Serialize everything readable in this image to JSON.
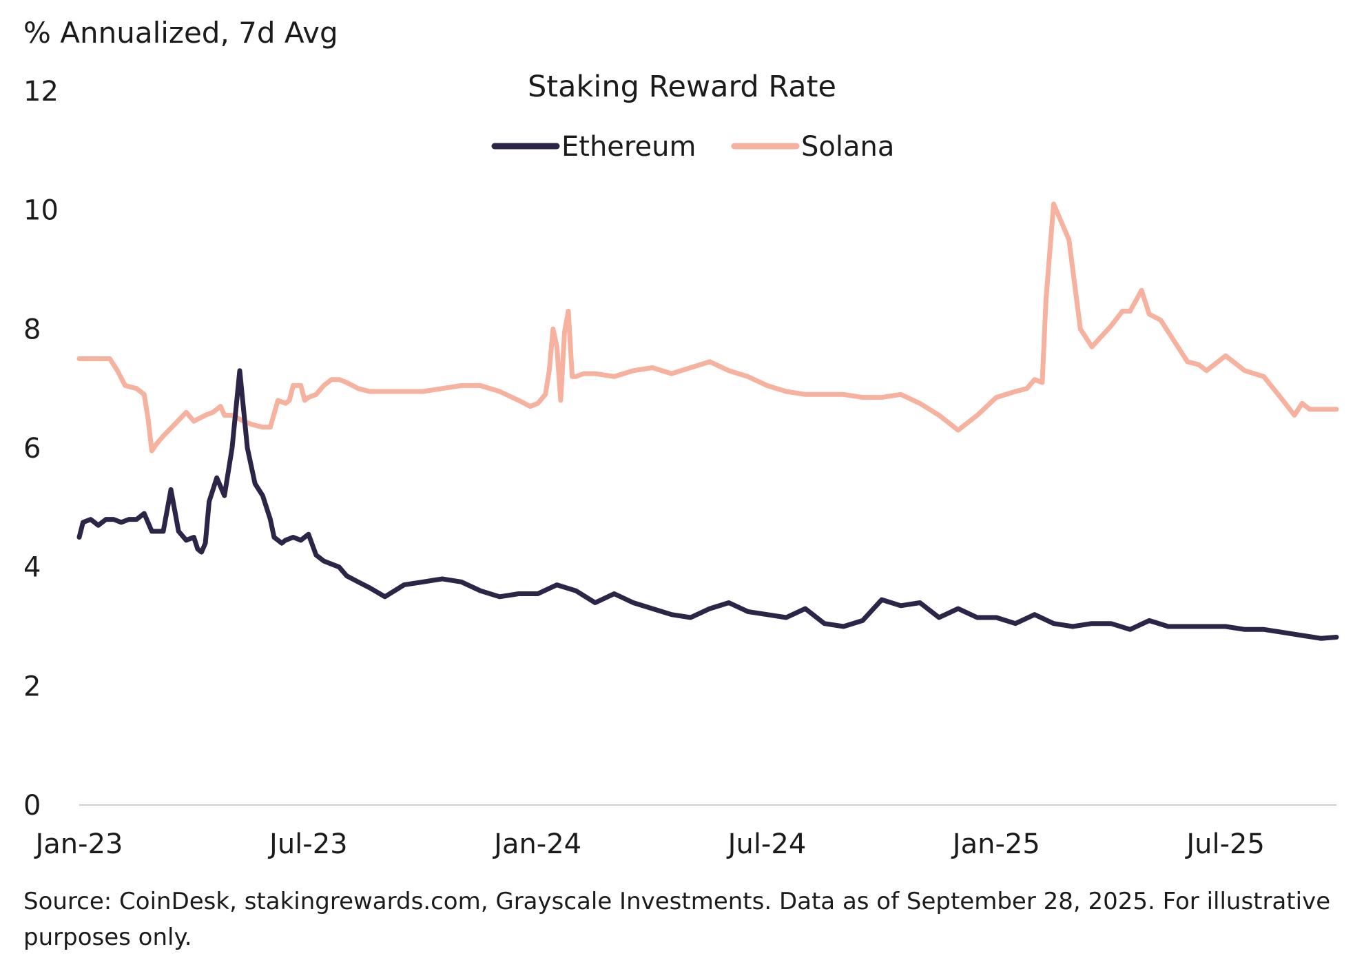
{
  "chart_data": {
    "type": "line",
    "title": "Staking Reward Rate",
    "ylabel": "% Annualized, 7d Avg",
    "xlabel": "",
    "ylim": [
      0,
      12
    ],
    "yticks": [
      0,
      2,
      4,
      6,
      8,
      10,
      12
    ],
    "x_tick_labels": [
      "Jan-23",
      "Jul-23",
      "Jan-24",
      "Jul-24",
      "Jan-25",
      "Jul-25"
    ],
    "x_tick_positions": [
      0,
      6,
      12,
      18,
      24,
      30
    ],
    "x_range": [
      0,
      32.9
    ],
    "grid": false,
    "legend": {
      "position": "top-center",
      "entries": [
        "Ethereum",
        "Solana"
      ]
    },
    "colors": {
      "Ethereum": "#2d2547",
      "Solana": "#f6b19f",
      "axis": "#cfcfcf"
    },
    "series": [
      {
        "name": "Ethereum",
        "x": [
          0,
          0.1,
          0.3,
          0.5,
          0.7,
          0.9,
          1.1,
          1.3,
          1.5,
          1.7,
          1.9,
          2.1,
          2.2,
          2.4,
          2.6,
          2.8,
          3.0,
          3.1,
          3.2,
          3.3,
          3.4,
          3.6,
          3.8,
          4.0,
          4.2,
          4.4,
          4.6,
          4.8,
          5.0,
          5.1,
          5.2,
          5.3,
          5.4,
          5.6,
          5.8,
          6.0,
          6.2,
          6.4,
          6.6,
          6.8,
          7.0,
          7.3,
          7.6,
          8.0,
          8.5,
          9.0,
          9.5,
          10.0,
          10.5,
          11.0,
          11.5,
          12.0,
          12.5,
          13.0,
          13.5,
          14.0,
          14.5,
          15.0,
          15.5,
          16.0,
          16.5,
          17.0,
          17.5,
          18.0,
          18.5,
          19.0,
          19.5,
          20.0,
          20.5,
          21.0,
          21.5,
          22.0,
          22.5,
          23.0,
          23.5,
          24.0,
          24.5,
          25.0,
          25.5,
          26.0,
          26.5,
          27.0,
          27.5,
          28.0,
          28.5,
          29.0,
          29.5,
          30.0,
          30.5,
          31.0,
          31.5,
          32.0,
          32.5,
          32.9
        ],
        "values": [
          4.5,
          4.75,
          4.8,
          4.7,
          4.8,
          4.8,
          4.75,
          4.8,
          4.8,
          4.9,
          4.6,
          4.6,
          4.6,
          5.3,
          4.6,
          4.45,
          4.5,
          4.3,
          4.25,
          4.4,
          5.1,
          5.5,
          5.2,
          6.0,
          7.3,
          6.0,
          5.4,
          5.2,
          4.8,
          4.5,
          4.45,
          4.4,
          4.45,
          4.5,
          4.45,
          4.55,
          4.2,
          4.1,
          4.05,
          4.0,
          3.85,
          3.75,
          3.65,
          3.5,
          3.7,
          3.75,
          3.8,
          3.75,
          3.6,
          3.5,
          3.55,
          3.55,
          3.7,
          3.6,
          3.4,
          3.55,
          3.4,
          3.3,
          3.2,
          3.15,
          3.3,
          3.4,
          3.25,
          3.2,
          3.15,
          3.3,
          3.05,
          3.0,
          3.1,
          3.45,
          3.35,
          3.4,
          3.15,
          3.3,
          3.15,
          3.15,
          3.05,
          3.2,
          3.05,
          3.0,
          3.05,
          3.05,
          2.95,
          3.1,
          3.0,
          3.0,
          3.0,
          3.0,
          2.95,
          2.95,
          2.9,
          2.85,
          2.8,
          2.82
        ]
      },
      {
        "name": "Solana",
        "x": [
          0,
          0.7,
          0.8,
          1.0,
          1.2,
          1.5,
          1.7,
          1.8,
          1.9,
          2.0,
          2.2,
          2.5,
          2.8,
          3.0,
          3.3,
          3.5,
          3.7,
          3.8,
          4.0,
          4.3,
          4.5,
          4.8,
          5.0,
          5.2,
          5.4,
          5.5,
          5.6,
          5.8,
          5.9,
          6.0,
          6.2,
          6.4,
          6.6,
          6.8,
          7.0,
          7.3,
          7.6,
          8.0,
          8.5,
          9.0,
          9.5,
          10.0,
          10.5,
          11.0,
          11.5,
          11.8,
          12.0,
          12.2,
          12.3,
          12.4,
          12.5,
          12.6,
          12.7,
          12.8,
          12.9,
          13.0,
          13.2,
          13.5,
          14.0,
          14.5,
          15.0,
          15.5,
          16.0,
          16.5,
          17.0,
          17.5,
          18.0,
          18.5,
          19.0,
          19.5,
          20.0,
          20.5,
          21.0,
          21.5,
          22.0,
          22.5,
          23.0,
          23.5,
          24.0,
          24.5,
          24.8,
          25.0,
          25.2,
          25.3,
          25.5,
          25.7,
          25.9,
          26.2,
          26.5,
          27.0,
          27.3,
          27.5,
          27.8,
          28.0,
          28.3,
          28.5,
          28.8,
          29.0,
          29.3,
          29.5,
          30.0,
          30.5,
          31.0,
          31.5,
          31.8,
          32.0,
          32.2,
          32.5,
          32.9
        ],
        "values": [
          7.5,
          7.5,
          7.5,
          7.3,
          7.05,
          7.0,
          6.9,
          6.5,
          5.95,
          6.05,
          6.2,
          6.4,
          6.6,
          6.45,
          6.55,
          6.6,
          6.7,
          6.55,
          6.55,
          6.45,
          6.4,
          6.35,
          6.35,
          6.8,
          6.75,
          6.8,
          7.05,
          7.05,
          6.8,
          6.85,
          6.9,
          7.05,
          7.15,
          7.15,
          7.1,
          7.0,
          6.95,
          6.95,
          6.95,
          6.95,
          7.0,
          7.05,
          7.05,
          6.95,
          6.8,
          6.7,
          6.75,
          6.9,
          7.3,
          8.0,
          7.7,
          6.8,
          7.95,
          8.3,
          7.2,
          7.2,
          7.25,
          7.25,
          7.2,
          7.3,
          7.35,
          7.25,
          7.35,
          7.45,
          7.3,
          7.2,
          7.05,
          6.95,
          6.9,
          6.9,
          6.9,
          6.85,
          6.85,
          6.9,
          6.75,
          6.55,
          6.3,
          6.55,
          6.85,
          6.95,
          7.0,
          7.15,
          7.1,
          8.5,
          10.1,
          9.8,
          9.5,
          8.0,
          7.7,
          8.05,
          8.3,
          8.3,
          8.65,
          8.25,
          8.15,
          7.95,
          7.65,
          7.45,
          7.4,
          7.3,
          7.55,
          7.3,
          7.2,
          6.8,
          6.55,
          6.75,
          6.65,
          6.65,
          6.65
        ]
      }
    ]
  },
  "source_note": "Source: CoinDesk, stakingrewards.com, Grayscale Investments. Data as of September 28, 2025. For illustrative purposes only."
}
